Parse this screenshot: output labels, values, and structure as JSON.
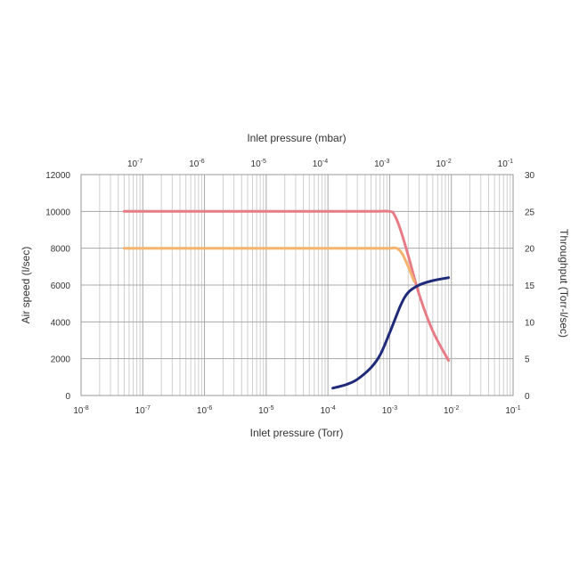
{
  "chart_data": {
    "type": "line",
    "x_scale": "log",
    "xlabel": "Inlet pressure (Torr)",
    "x2label": "Inlet pressure (mbar)",
    "ylabel": "Air speed (l/sec)",
    "y2label": "Throughput (Torr-l/sec)",
    "xlim": [
      1e-08,
      0.1
    ],
    "ylim": [
      0,
      12000
    ],
    "y2lim": [
      0,
      30
    ],
    "grid": true,
    "x_ticks": [
      {
        "base": "10",
        "exp": "-8",
        "value": 1e-08
      },
      {
        "base": "10",
        "exp": "-7",
        "value": 1e-07
      },
      {
        "base": "10",
        "exp": "-6",
        "value": 1e-06
      },
      {
        "base": "10",
        "exp": "-5",
        "value": 1e-05
      },
      {
        "base": "10",
        "exp": "-4",
        "value": 0.0001
      },
      {
        "base": "10",
        "exp": "-3",
        "value": 0.001
      },
      {
        "base": "10",
        "exp": "-2",
        "value": 0.01
      },
      {
        "base": "10",
        "exp": "-1",
        "value": 0.1
      }
    ],
    "x2_ticks": [
      {
        "base": "10",
        "exp": "-7",
        "value_torr": 7.5e-08
      },
      {
        "base": "10",
        "exp": "-6",
        "value_torr": 7.5e-07
      },
      {
        "base": "10",
        "exp": "-5",
        "value_torr": 7.5e-06
      },
      {
        "base": "10",
        "exp": "-4",
        "value_torr": 7.5e-05
      },
      {
        "base": "10",
        "exp": "-3",
        "value_torr": 0.00075
      },
      {
        "base": "10",
        "exp": "-2",
        "value_torr": 0.0075
      },
      {
        "base": "10",
        "exp": "-1",
        "value_torr": 0.075
      }
    ],
    "y_ticks": [
      "0",
      "2000",
      "4000",
      "6000",
      "8000",
      "10000",
      "12000"
    ],
    "y2_ticks": [
      "0",
      "5",
      "10",
      "15",
      "20",
      "25",
      "30"
    ],
    "series": [
      {
        "color": "#e87c86",
        "axis": "left",
        "x": [
          5e-08,
          1e-07,
          1e-06,
          1e-05,
          0.0001,
          0.0005,
          0.001,
          0.0012,
          0.0015,
          0.002,
          0.003,
          0.005,
          0.009
        ],
        "y": [
          10000,
          10000,
          10000,
          10000,
          10000,
          10000,
          10000,
          9800,
          9000,
          7600,
          5500,
          3500,
          1900
        ]
      },
      {
        "color": "#f5b36e",
        "axis": "left",
        "x": [
          5e-08,
          1e-07,
          1e-06,
          1e-05,
          0.0001,
          0.0005,
          0.001,
          0.0013,
          0.0016,
          0.002,
          0.0025
        ],
        "y": [
          8000,
          8000,
          8000,
          8000,
          8000,
          8000,
          8000,
          8000,
          7700,
          7000,
          6200
        ]
      },
      {
        "color": "#1f2a7a",
        "axis": "right",
        "x": [
          0.00012,
          0.0002,
          0.0003,
          0.0005,
          0.0007,
          0.001,
          0.0015,
          0.002,
          0.003,
          0.005,
          0.009
        ],
        "y": [
          1,
          1.5,
          2.2,
          3.8,
          5.5,
          8.5,
          12.2,
          14,
          15,
          15.6,
          16
        ]
      }
    ]
  }
}
